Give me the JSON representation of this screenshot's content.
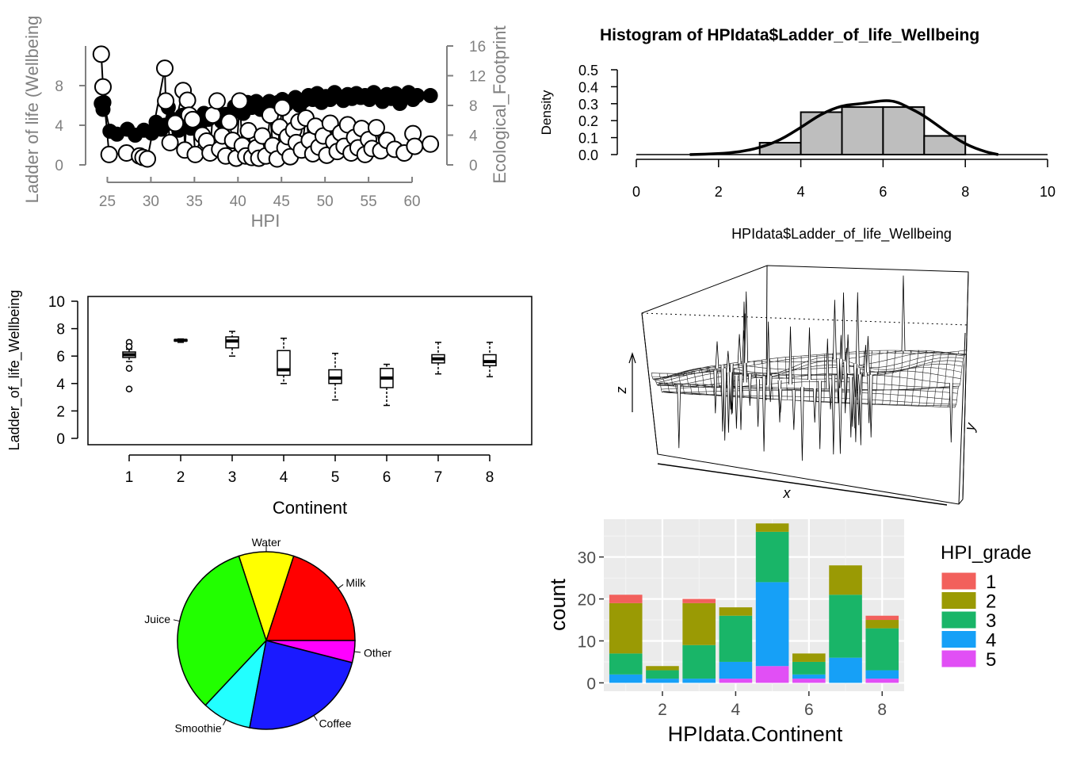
{
  "chart_data": [
    {
      "id": "dual-axis-scatter",
      "type": "scatter",
      "xlabel": "HPI",
      "ylabel_left": "Ladder of life (Wellbeing",
      "ylabel_right": "Ecological_Footprint",
      "x_ticks": [
        "25",
        "30",
        "35",
        "40",
        "45",
        "50",
        "55",
        "60"
      ],
      "y_left_ticks": [
        "0",
        "4",
        "8"
      ],
      "y_right_ticks": [
        "0",
        "4",
        "8",
        "12",
        "16"
      ],
      "xlim": [
        22.5,
        64
      ],
      "ylim_left": [
        0,
        12
      ],
      "ylim_right": [
        0,
        16
      ],
      "series": [
        {
          "points": [
            [
              24.3,
              6.2
            ],
            [
              24.5,
              5.6
            ],
            [
              24.6,
              6.3
            ],
            [
              25.3,
              3.4
            ],
            [
              26.1,
              3.1
            ],
            [
              27.3,
              3.6
            ],
            [
              28.2,
              3.0
            ],
            [
              29.2,
              3.5
            ],
            [
              30.1,
              3.2
            ],
            [
              30.6,
              4.3
            ],
            [
              31.2,
              3.6
            ],
            [
              31.6,
              4.0
            ],
            [
              32.0,
              5.8
            ],
            [
              32.5,
              4.6
            ],
            [
              33.2,
              3.5
            ],
            [
              33.6,
              5.0
            ],
            [
              34.2,
              4.2
            ],
            [
              34.6,
              3.7
            ],
            [
              35.2,
              4.5
            ],
            [
              35.6,
              3.9
            ],
            [
              36.1,
              5.2
            ],
            [
              36.6,
              4.6
            ],
            [
              37.1,
              4.9
            ],
            [
              37.6,
              5.3
            ],
            [
              38.1,
              4.4
            ],
            [
              38.6,
              5.1
            ],
            [
              39.1,
              4.8
            ],
            [
              39.6,
              5.9
            ],
            [
              40.1,
              5.5
            ],
            [
              40.6,
              5.2
            ],
            [
              41.1,
              6.3
            ],
            [
              41.6,
              5.8
            ],
            [
              42.1,
              6.4
            ],
            [
              42.6,
              5.6
            ],
            [
              43.1,
              6.1
            ],
            [
              43.6,
              6.4
            ],
            [
              44.1,
              5.9
            ],
            [
              44.6,
              6.3
            ],
            [
              45.1,
              6.6
            ],
            [
              45.6,
              6.1
            ],
            [
              46.1,
              6.4
            ],
            [
              46.6,
              6.8
            ],
            [
              47.1,
              6.0
            ],
            [
              47.6,
              6.5
            ],
            [
              48.1,
              7.0
            ],
            [
              48.6,
              6.6
            ],
            [
              49.1,
              7.2
            ],
            [
              49.6,
              6.3
            ],
            [
              50.1,
              6.9
            ],
            [
              50.6,
              6.6
            ],
            [
              51.1,
              7.3
            ],
            [
              51.6,
              6.9
            ],
            [
              52.1,
              6.5
            ],
            [
              52.6,
              7.1
            ],
            [
              53.1,
              6.7
            ],
            [
              53.6,
              7.2
            ],
            [
              54.1,
              6.8
            ],
            [
              54.6,
              7.0
            ],
            [
              55.1,
              6.6
            ],
            [
              55.6,
              7.3
            ],
            [
              56.1,
              6.9
            ],
            [
              56.6,
              6.4
            ],
            [
              57.1,
              7.1
            ],
            [
              57.6,
              6.7
            ],
            [
              58.1,
              7.2
            ],
            [
              58.6,
              6.2
            ],
            [
              59.1,
              6.8
            ],
            [
              59.6,
              7.3
            ],
            [
              60.1,
              6.6
            ],
            [
              60.6,
              7.0
            ],
            [
              62.1,
              7.0
            ]
          ]
        },
        {
          "points": [
            [
              24.3,
              14.9
            ],
            [
              24.5,
              10.5
            ],
            [
              25.2,
              1.4
            ],
            [
              27.2,
              1.6
            ],
            [
              28.7,
              1.2
            ],
            [
              29.1,
              1.0
            ],
            [
              29.6,
              0.8
            ],
            [
              31.6,
              13.0
            ],
            [
              31.7,
              8.6
            ],
            [
              32.2,
              3.0
            ],
            [
              32.8,
              5.6
            ],
            [
              33.7,
              10.0
            ],
            [
              33.9,
              2.0
            ],
            [
              34.2,
              8.7
            ],
            [
              34.4,
              6.7
            ],
            [
              34.8,
              6.1
            ],
            [
              35.1,
              1.4
            ],
            [
              35.9,
              4.0
            ],
            [
              36.4,
              3.2
            ],
            [
              36.8,
              1.6
            ],
            [
              37.1,
              6.7
            ],
            [
              37.6,
              8.6
            ],
            [
              37.9,
              2.1
            ],
            [
              38.2,
              3.9
            ],
            [
              38.6,
              1.2
            ],
            [
              39.0,
              5.8
            ],
            [
              39.4,
              3.3
            ],
            [
              39.8,
              0.9
            ],
            [
              40.2,
              8.6
            ],
            [
              40.5,
              2.6
            ],
            [
              40.9,
              1.2
            ],
            [
              41.2,
              4.6
            ],
            [
              41.6,
              1.0
            ],
            [
              42.1,
              2.3
            ],
            [
              42.4,
              0.9
            ],
            [
              42.8,
              3.9
            ],
            [
              43.2,
              1.2
            ],
            [
              43.7,
              6.7
            ],
            [
              44.0,
              2.6
            ],
            [
              44.5,
              0.8
            ],
            [
              44.8,
              5.1
            ],
            [
              45.1,
              7.7
            ],
            [
              45.4,
              2.3
            ],
            [
              45.7,
              3.8
            ],
            [
              46.0,
              1.1
            ],
            [
              46.4,
              4.7
            ],
            [
              46.7,
              3.0
            ],
            [
              47.0,
              5.8
            ],
            [
              47.3,
              2.0
            ],
            [
              47.8,
              6.3
            ],
            [
              48.2,
              3.3
            ],
            [
              48.6,
              1.5
            ],
            [
              48.9,
              5.2
            ],
            [
              49.3,
              2.4
            ],
            [
              49.8,
              3.9
            ],
            [
              50.2,
              1.3
            ],
            [
              50.6,
              5.6
            ],
            [
              51.0,
              3.1
            ],
            [
              51.4,
              1.8
            ],
            [
              51.8,
              4.3
            ],
            [
              52.2,
              2.5
            ],
            [
              52.6,
              5.4
            ],
            [
              53.0,
              1.6
            ],
            [
              53.4,
              3.7
            ],
            [
              53.8,
              2.3
            ],
            [
              54.2,
              4.9
            ],
            [
              54.6,
              1.4
            ],
            [
              55.0,
              3.4
            ],
            [
              55.4,
              2.2
            ],
            [
              55.9,
              5.0
            ],
            [
              56.4,
              1.9
            ],
            [
              57.1,
              3.3
            ],
            [
              58.0,
              2.1
            ],
            [
              59.1,
              1.6
            ],
            [
              60.1,
              4.2
            ],
            [
              60.3,
              2.5
            ],
            [
              62.1,
              2.8
            ]
          ]
        }
      ]
    },
    {
      "id": "histogram",
      "type": "bar",
      "title": "Histogram of HPIdata$Ladder_of_life_Wellbeing",
      "xlabel": "HPIdata$Ladder_of_life_Wellbeing",
      "ylabel": "Density",
      "x_ticks": [
        "0",
        "2",
        "4",
        "6",
        "8",
        "10"
      ],
      "y_ticks": [
        "0.0",
        "0.1",
        "0.2",
        "0.3",
        "0.4",
        "0.5"
      ],
      "xlim": [
        0,
        10
      ],
      "ylim": [
        0,
        0.5
      ],
      "bins": [
        [
          3,
          4,
          0.07
        ],
        [
          4,
          5,
          0.25
        ],
        [
          5,
          6,
          0.28
        ],
        [
          6,
          7,
          0.28
        ],
        [
          7,
          8,
          0.11
        ]
      ],
      "density_curve": [
        [
          1.3,
          0.0
        ],
        [
          2.0,
          0.005
        ],
        [
          2.5,
          0.015
        ],
        [
          3.0,
          0.04
        ],
        [
          3.5,
          0.085
        ],
        [
          4.0,
          0.16
        ],
        [
          4.5,
          0.24
        ],
        [
          5.0,
          0.29
        ],
        [
          5.5,
          0.3
        ],
        [
          6.0,
          0.32
        ],
        [
          6.3,
          0.315
        ],
        [
          6.6,
          0.28
        ],
        [
          7.0,
          0.23
        ],
        [
          7.5,
          0.14
        ],
        [
          8.0,
          0.06
        ],
        [
          8.5,
          0.015
        ],
        [
          8.8,
          0.0
        ]
      ]
    },
    {
      "id": "boxplot",
      "type": "box",
      "xlabel": "Continent",
      "ylabel": "Ladder_of_life_Wellbeing",
      "categories": [
        "1",
        "2",
        "3",
        "4",
        "5",
        "6",
        "7",
        "8"
      ],
      "y_ticks": [
        "0",
        "2",
        "4",
        "6",
        "8",
        "10"
      ],
      "ylim": [
        0,
        10
      ],
      "boxes": [
        {
          "min": 5.6,
          "q1": 5.9,
          "median": 6.1,
          "q3": 6.3,
          "max": 6.5,
          "outliers": [
            7.0,
            6.7,
            5.1,
            3.6
          ]
        },
        {
          "min": 7.0,
          "q1": 7.1,
          "median": 7.15,
          "q3": 7.2,
          "max": 7.25,
          "outliers": []
        },
        {
          "min": 6.0,
          "q1": 6.6,
          "median": 7.1,
          "q3": 7.4,
          "max": 7.8,
          "outliers": []
        },
        {
          "min": 4.0,
          "q1": 4.6,
          "median": 5.0,
          "q3": 6.4,
          "max": 7.3,
          "outliers": []
        },
        {
          "min": 2.8,
          "q1": 4.0,
          "median": 4.4,
          "q3": 5.0,
          "max": 6.2,
          "outliers": []
        },
        {
          "min": 2.4,
          "q1": 3.7,
          "median": 4.4,
          "q3": 5.1,
          "max": 5.4,
          "outliers": []
        },
        {
          "min": 4.7,
          "q1": 5.5,
          "median": 5.8,
          "q3": 6.1,
          "max": 7.0,
          "outliers": []
        },
        {
          "min": 4.5,
          "q1": 5.3,
          "median": 5.6,
          "q3": 6.1,
          "max": 7.0,
          "outliers": []
        }
      ]
    },
    {
      "id": "perspective",
      "type": "surface",
      "xlabel": "x",
      "ylabel": "y",
      "zlabel": "z"
    },
    {
      "id": "pie",
      "type": "pie",
      "labels": [
        "Milk",
        "Water",
        "Juice",
        "Smoothie",
        "Coffee",
        "Other"
      ],
      "values": [
        20,
        10,
        33,
        9,
        24,
        4
      ],
      "colors": [
        "#ff0000",
        "#ffff00",
        "#22ff00",
        "#22ffff",
        "#1a1aff",
        "#ff00ff"
      ]
    },
    {
      "id": "stacked",
      "type": "bar",
      "stacked": true,
      "xlabel": "HPIdata.Continent",
      "ylabel": "count",
      "legend_title": "HPI_grade",
      "legend_position": "right",
      "x_ticks": [
        "2",
        "4",
        "6",
        "8"
      ],
      "y_ticks": [
        "0",
        "10",
        "20",
        "30"
      ],
      "ylim": [
        -2,
        39
      ],
      "categories": [
        1,
        2,
        3,
        4,
        5,
        6,
        7,
        8
      ],
      "series": [
        {
          "name": "5",
          "color": "#e14ff5",
          "values": [
            0,
            0,
            0,
            1,
            4,
            1,
            0,
            1
          ]
        },
        {
          "name": "4",
          "color": "#16a0f7",
          "values": [
            2,
            1,
            1,
            4,
            20,
            1,
            6,
            2
          ]
        },
        {
          "name": "3",
          "color": "#19b568",
          "values": [
            5,
            2,
            8,
            11,
            12,
            3,
            15,
            10
          ]
        },
        {
          "name": "2",
          "color": "#9a9a04",
          "values": [
            12,
            1,
            10,
            2,
            2,
            2,
            7,
            2
          ]
        },
        {
          "name": "1",
          "color": "#f2605c",
          "values": [
            2,
            0,
            1,
            0,
            0,
            0,
            0,
            1
          ]
        }
      ]
    }
  ]
}
